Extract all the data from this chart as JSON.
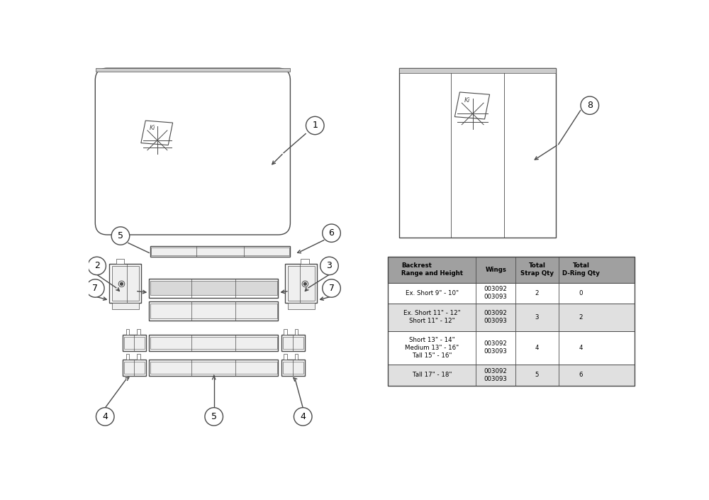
{
  "bg_color": "#ffffff",
  "line_color": "#4a4a4a",
  "lw_main": 1.0,
  "lw_thin": 0.6,
  "gray_fill": "#d8d8d8",
  "light_fill": "#efefef",
  "table_header_bg": "#a0a0a0",
  "table_row_bg1": "#ffffff",
  "table_row_bg2": "#e0e0e0",
  "table_data": {
    "headers": [
      "Backrest\nRange and Height",
      "Wings",
      "Total\nStrap Qty",
      "Total\nD-Ring Qty"
    ],
    "rows": [
      [
        "Ex. Short 9\" - 10\"",
        "003092\n003093",
        "2",
        "0"
      ],
      [
        "Ex. Short 11\" - 12\"\nShort 11\" - 12\"",
        "003092\n003093",
        "3",
        "2"
      ],
      [
        "Short 13\" - 14\"\nMedium 13\" - 16\"\nTall 15\" - 16\"",
        "003092\n003093",
        "4",
        "4"
      ],
      [
        "Tall 17\" - 18\"",
        "003092\n003093",
        "5",
        "6"
      ]
    ]
  }
}
